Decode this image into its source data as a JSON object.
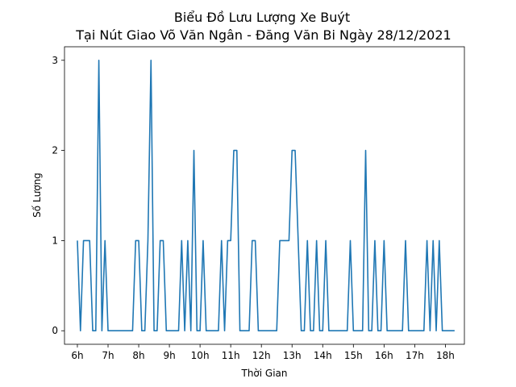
{
  "chart_data": {
    "type": "line",
    "title": "Biểu Đồ Lưu Lượng Xe Buýt",
    "subtitle": "Tại Nút Giao Võ Văn Ngân - Đăng Văn Bi Ngày 28/12/2021",
    "xlabel": "Thời Gian",
    "ylabel": "Số Lượng",
    "xlim": [
      5.58,
      18.62
    ],
    "ylim": [
      -0.15,
      3.15
    ],
    "x_ticks": [
      6,
      7,
      8,
      9,
      10,
      11,
      12,
      13,
      14,
      15,
      16,
      17,
      18
    ],
    "x_tick_labels": [
      "6h",
      "7h",
      "8h",
      "9h",
      "10h",
      "11h",
      "12h",
      "13h",
      "14h",
      "15h",
      "16h",
      "17h",
      "18h"
    ],
    "y_ticks": [
      0,
      1,
      2,
      3
    ],
    "y_tick_labels": [
      "0",
      "1",
      "2",
      "3"
    ],
    "grid": false,
    "legend": "none",
    "line_color": "#1f77b4",
    "series": [
      {
        "x": [
          6.0,
          6.1,
          6.2,
          6.4,
          6.5,
          6.6,
          6.7,
          6.8,
          6.9,
          7.0,
          7.8,
          7.9,
          8.0,
          8.1,
          8.2,
          8.3,
          8.4,
          8.5,
          8.6,
          8.7,
          8.8,
          8.9,
          9.0,
          9.3,
          9.4,
          9.5,
          9.6,
          9.7,
          9.8,
          9.9,
          10.0,
          10.1,
          10.2,
          10.5,
          10.6,
          10.7,
          10.8,
          10.9,
          11.0,
          11.1,
          11.2,
          11.3,
          11.6,
          11.7,
          11.8,
          11.9,
          12.5,
          12.6,
          12.9,
          13.0,
          13.1,
          13.2,
          13.3,
          13.4,
          13.5,
          13.6,
          13.7,
          13.8,
          13.9,
          14.0,
          14.1,
          14.2,
          14.3,
          14.8,
          14.9,
          15.0,
          15.3,
          15.4,
          15.5,
          15.6,
          15.7,
          15.8,
          15.9,
          16.0,
          16.1,
          16.2,
          16.5,
          16.6,
          16.7,
          16.8,
          17.2,
          17.3,
          17.4,
          17.5,
          17.6,
          17.7,
          17.8,
          17.9,
          18.0,
          18.1,
          18.3
        ],
        "y": [
          1,
          0,
          1,
          1,
          0,
          0,
          3,
          0,
          1,
          0,
          0,
          1,
          1,
          0,
          0,
          1,
          3,
          0,
          0,
          1,
          1,
          0,
          0,
          0,
          1,
          0,
          1,
          0,
          2,
          0,
          0,
          1,
          0,
          0,
          0,
          1,
          0,
          1,
          1,
          2,
          2,
          0,
          0,
          1,
          1,
          0,
          0,
          1,
          1,
          2,
          2,
          1,
          0,
          0,
          1,
          0,
          0,
          1,
          0,
          0,
          1,
          0,
          0,
          0,
          1,
          0,
          0,
          2,
          0,
          0,
          1,
          0,
          0,
          1,
          0,
          0,
          0,
          0,
          1,
          0,
          0,
          0,
          1,
          0,
          1,
          0,
          1,
          0,
          0,
          0,
          0
        ]
      }
    ]
  }
}
